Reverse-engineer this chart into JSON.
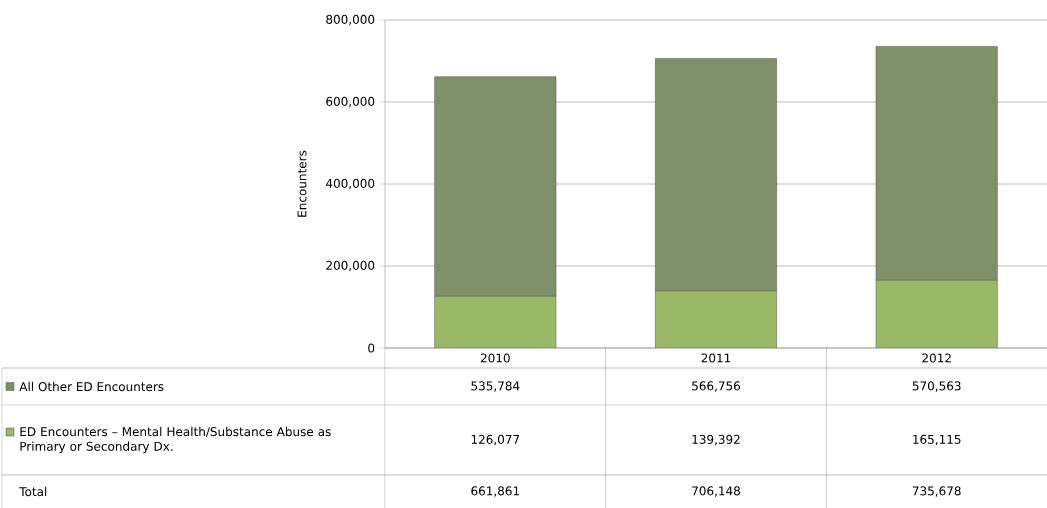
{
  "chart_data": {
    "type": "bar",
    "stacked": true,
    "ylabel": "Encounters",
    "categories": [
      "2010",
      "2011",
      "2012"
    ],
    "series": [
      {
        "name": "ED Encounters – Mental Health/Substance Abuse as Primary or Secondary Dx.",
        "color": "#9bb868",
        "values": [
          126077,
          139392,
          165115
        ],
        "value_labels": [
          "126,077",
          "139,392",
          "165,115"
        ]
      },
      {
        "name": "All Other ED Encounters",
        "color": "#7f8f69",
        "values": [
          535784,
          566756,
          570563
        ],
        "value_labels": [
          "535,784",
          "566,756",
          "570,563"
        ]
      }
    ],
    "annotations": [
      "Total",
      "661,861",
      "706,148",
      "735,678"
    ],
    "ylim": [
      0,
      800000
    ],
    "yticks": [
      {
        "value": 0,
        "label": "0"
      },
      {
        "value": 200000,
        "label": "200,000"
      },
      {
        "value": 400000,
        "label": "400,000"
      },
      {
        "value": 600000,
        "label": "600,000"
      },
      {
        "value": 800000,
        "label": "800,000"
      }
    ],
    "grid": "y",
    "legend": "bottom"
  }
}
